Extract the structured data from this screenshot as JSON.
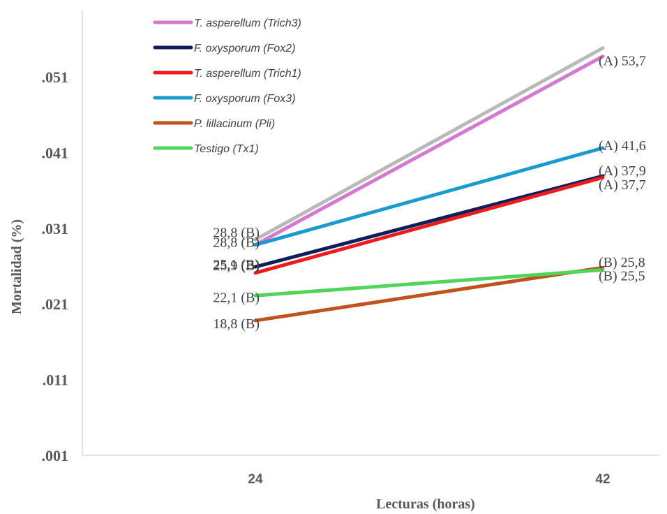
{
  "chart_data": {
    "type": "line",
    "title": "",
    "xlabel": "Lecturas (horas)",
    "ylabel": "Mortalidad (%)",
    "categories": [
      "24",
      "42"
    ],
    "y_ticks": [
      ".001",
      ".011",
      ".021",
      ".031",
      ".041",
      ".051"
    ],
    "ylim": [
      1,
      60
    ],
    "grid": false,
    "legend_position": "top-left",
    "series": [
      {
        "name": "T. asperellum (Trich3)",
        "color": "#d678d3",
        "values": [
          28.8,
          53.7
        ],
        "labels": [
          "28,8 (B)",
          "(A) 53,7"
        ],
        "in_legend": true
      },
      {
        "name": "F. oxysporum  (Fox2)",
        "color": "#0f1f5c",
        "values": [
          25.9,
          37.9
        ],
        "labels": [
          "25,9 (B)",
          "(A) 37,9"
        ],
        "in_legend": true
      },
      {
        "name": "T. asperellum (Trich1)",
        "color": "#ee1b1b",
        "values": [
          25.1,
          37.7
        ],
        "labels": [
          "25,1 (B)",
          "(A) 37,7"
        ],
        "in_legend": true
      },
      {
        "name": "F. oxysporum  (Fox3)",
        "color": "#1a9bd0",
        "values": [
          28.8,
          41.6
        ],
        "labels": [
          "28,8 (B)",
          "(A) 41,6"
        ],
        "in_legend": true
      },
      {
        "name": "P. lillacinum (Pli)",
        "color": "#c0531b",
        "values": [
          18.8,
          25.8
        ],
        "labels": [
          "18,8 (B)",
          "(B) 25,8"
        ],
        "in_legend": true
      },
      {
        "name": "Testigo (Tx1)",
        "color": "#4fd65a",
        "values": [
          22.1,
          25.5
        ],
        "labels": [
          "22,1 (B)",
          "(B) 25,5"
        ],
        "in_legend": true
      },
      {
        "name": "",
        "color": "#b9b9b9",
        "values": [
          29.5,
          54.8
        ],
        "labels": [
          "",
          ""
        ],
        "in_legend": false
      }
    ]
  }
}
